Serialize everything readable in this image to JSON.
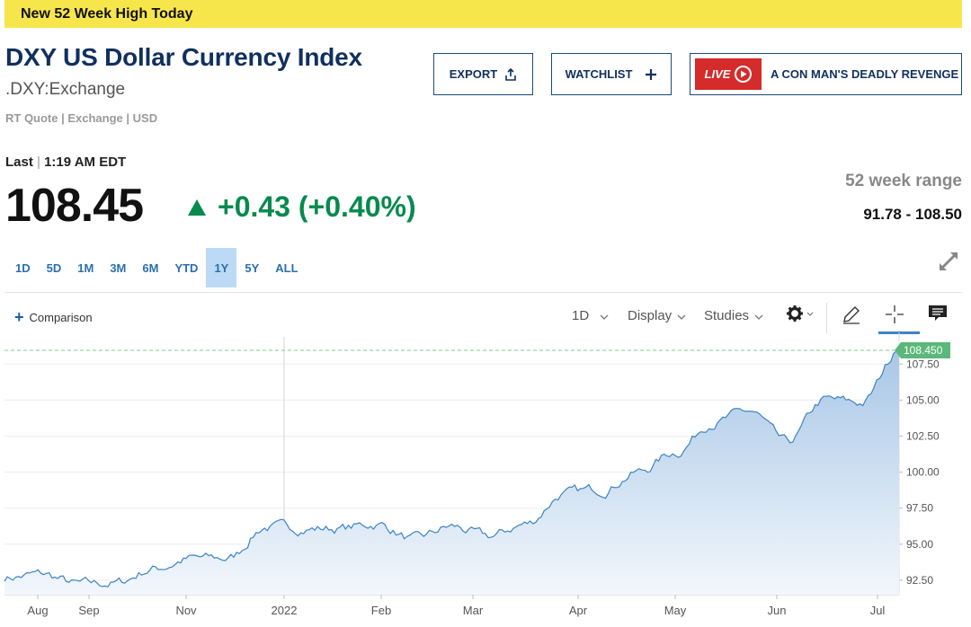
{
  "banner": {
    "text": "New 52 Week High Today"
  },
  "header": {
    "title": "DXY US Dollar Currency Index",
    "symbol": ".DXY:Exchange",
    "meta": "RT Quote | Exchange | USD"
  },
  "actions": {
    "export_label": "EXPORT",
    "watchlist_label": "WATCHLIST",
    "live_badge": "LIVE",
    "live_text": "A CON MAN'S DEADLY REVENGE"
  },
  "quote": {
    "last_label": "Last",
    "time": "1:19 AM EDT",
    "price": "108.45",
    "change": "+0.43 (+0.40%)",
    "change_color": "#078a4e",
    "range_label": "52 week range",
    "range_value": "91.78 - 108.50"
  },
  "range_tabs": [
    "1D",
    "5D",
    "1M",
    "3M",
    "6M",
    "YTD",
    "1Y",
    "5Y",
    "ALL"
  ],
  "active_range": "1Y",
  "toolbar": {
    "comparison_label": "Comparison",
    "interval": "1D",
    "display_label": "Display",
    "studies_label": "Studies",
    "icons": [
      "gear-icon",
      "pencil-icon",
      "crosshair-icon",
      "comment-icon"
    ]
  },
  "chart_data": {
    "type": "area",
    "x_labels": [
      "Aug",
      "Sep",
      "Nov",
      "2022",
      "Feb",
      "Mar",
      "Apr",
      "May",
      "Jun",
      "Jul"
    ],
    "y_ticks": [
      "107.50",
      "105.00",
      "102.50",
      "100.00",
      "97.50",
      "95.00",
      "92.50"
    ],
    "ylim": [
      91.5,
      109.7
    ],
    "last_value": "108.450",
    "line_color": "#3c84c4",
    "x": [
      "Jul 2021",
      "Aug",
      "Aug",
      "Sep",
      "Sep",
      "Oct",
      "Oct",
      "Nov",
      "Nov",
      "Dec",
      "Dec",
      "Jan 2022",
      "Jan",
      "Feb",
      "Feb",
      "Mar",
      "Mar",
      "Apr",
      "Apr",
      "May",
      "May",
      "Jun",
      "Jun",
      "Jul",
      "Jul"
    ],
    "values": [
      92.7,
      92.9,
      92.2,
      92.3,
      93.3,
      94.0,
      94.0,
      96.2,
      96.1,
      96.1,
      96.4,
      95.3,
      96.2,
      95.5,
      96.4,
      98.5,
      98.8,
      100.0,
      101.4,
      103.5,
      104.2,
      102.0,
      105.0,
      104.8,
      108.45
    ]
  }
}
